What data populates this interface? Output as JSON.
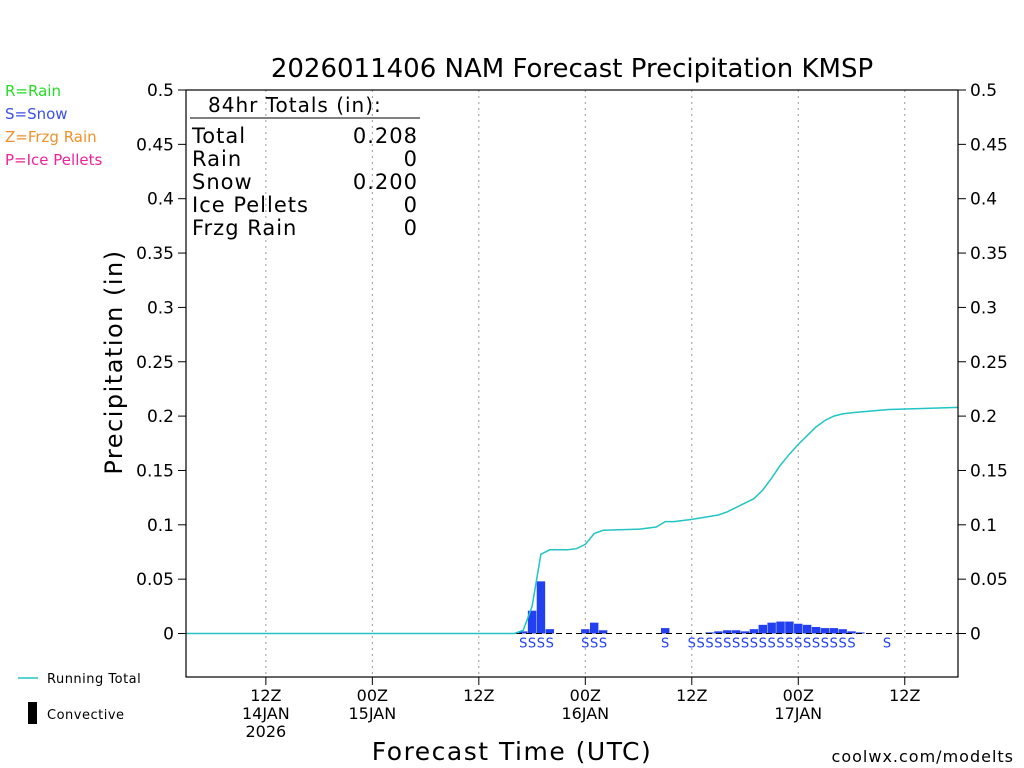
{
  "chart_data": {
    "type": "bar",
    "title": "2026011406 NAM Forecast Precipitation KMSP",
    "xlabel": "Forecast Time (UTC)",
    "ylabel": "Precipitation (in)",
    "ylim": [
      -0.04,
      0.5
    ],
    "xlim_hours": [
      -3,
      84
    ],
    "yticks": [
      {
        "v": 0.5,
        "label": "0.5"
      },
      {
        "v": 0.45,
        "label": "0.45"
      },
      {
        "v": 0.4,
        "label": "0.4"
      },
      {
        "v": 0.35,
        "label": "0.35"
      },
      {
        "v": 0.3,
        "label": "0.3"
      },
      {
        "v": 0.25,
        "label": "0.25"
      },
      {
        "v": 0.2,
        "label": "0.2"
      },
      {
        "v": 0.15,
        "label": "0.15"
      },
      {
        "v": 0.1,
        "label": "0.1"
      },
      {
        "v": 0.05,
        "label": "0.05"
      },
      {
        "v": 0,
        "label": "0"
      }
    ],
    "xticks": [
      {
        "h": 6,
        "lines": [
          "12Z",
          "14JAN",
          "2026"
        ]
      },
      {
        "h": 18,
        "lines": [
          "00Z",
          "15JAN"
        ]
      },
      {
        "h": 30,
        "lines": [
          "12Z"
        ]
      },
      {
        "h": 42,
        "lines": [
          "00Z",
          "16JAN"
        ]
      },
      {
        "h": 54,
        "lines": [
          "12Z"
        ]
      },
      {
        "h": 66,
        "lines": [
          "00Z",
          "17JAN"
        ]
      },
      {
        "h": 78,
        "lines": [
          "12Z"
        ]
      }
    ],
    "legend": [
      {
        "label": "R=Rain",
        "color": "#22dd22"
      },
      {
        "label": "S=Snow",
        "color": "#3b50e6"
      },
      {
        "label": "Z=Frzg Rain",
        "color": "#f0902a"
      },
      {
        "label": "P=Ice Pellets",
        "color": "#ee2299"
      }
    ],
    "series_legend": [
      {
        "label": "Running Total",
        "color": "#22c4c4",
        "kind": "line"
      },
      {
        "label": "Convective",
        "color": "#000000",
        "kind": "bar"
      }
    ],
    "totals": {
      "heading": "84hr Totals (in):",
      "rows": [
        {
          "label": "Total",
          "value": "0.208"
        },
        {
          "label": "Rain",
          "value": "0"
        },
        {
          "label": "Snow",
          "value": "0.200"
        },
        {
          "label": "Ice Pellets",
          "value": "0"
        },
        {
          "label": "Frzg Rain",
          "value": "0"
        }
      ]
    },
    "bars": [
      {
        "h": 35,
        "v": 0.002
      },
      {
        "h": 36,
        "v": 0.021
      },
      {
        "h": 37,
        "v": 0.048
      },
      {
        "h": 38,
        "v": 0.004
      },
      {
        "h": 42,
        "v": 0.004
      },
      {
        "h": 43,
        "v": 0.01
      },
      {
        "h": 44,
        "v": 0.003
      },
      {
        "h": 51,
        "v": 0.005
      },
      {
        "h": 56,
        "v": 0.001
      },
      {
        "h": 57,
        "v": 0.002
      },
      {
        "h": 58,
        "v": 0.003
      },
      {
        "h": 59,
        "v": 0.003
      },
      {
        "h": 60,
        "v": 0.002
      },
      {
        "h": 61,
        "v": 0.004
      },
      {
        "h": 62,
        "v": 0.008
      },
      {
        "h": 63,
        "v": 0.01
      },
      {
        "h": 64,
        "v": 0.011
      },
      {
        "h": 65,
        "v": 0.011
      },
      {
        "h": 66,
        "v": 0.009
      },
      {
        "h": 67,
        "v": 0.008
      },
      {
        "h": 68,
        "v": 0.006
      },
      {
        "h": 69,
        "v": 0.005
      },
      {
        "h": 70,
        "v": 0.005
      },
      {
        "h": 71,
        "v": 0.004
      },
      {
        "h": 72,
        "v": 0.002
      },
      {
        "h": 73,
        "v": 0.001
      }
    ],
    "running_total": [
      [
        -3,
        0
      ],
      [
        34,
        0
      ],
      [
        35,
        0.003
      ],
      [
        36,
        0.025
      ],
      [
        37,
        0.073
      ],
      [
        38,
        0.077
      ],
      [
        40,
        0.077
      ],
      [
        41,
        0.078
      ],
      [
        42,
        0.082
      ],
      [
        43,
        0.092
      ],
      [
        44,
        0.095
      ],
      [
        48,
        0.096
      ],
      [
        50,
        0.098
      ],
      [
        51,
        0.103
      ],
      [
        52,
        0.103
      ],
      [
        54,
        0.105
      ],
      [
        57,
        0.109
      ],
      [
        58,
        0.112
      ],
      [
        59,
        0.116
      ],
      [
        60,
        0.12
      ],
      [
        61,
        0.124
      ],
      [
        62,
        0.132
      ],
      [
        63,
        0.143
      ],
      [
        64,
        0.155
      ],
      [
        65,
        0.165
      ],
      [
        66,
        0.174
      ],
      [
        67,
        0.182
      ],
      [
        68,
        0.19
      ],
      [
        69,
        0.196
      ],
      [
        70,
        0.2
      ],
      [
        71,
        0.202
      ],
      [
        72,
        0.203
      ],
      [
        76,
        0.206
      ],
      [
        80,
        0.207
      ],
      [
        84,
        0.208
      ]
    ],
    "ptype_markers": [
      {
        "h": 35,
        "type": "S"
      },
      {
        "h": 36,
        "type": "S"
      },
      {
        "h": 37,
        "type": "S"
      },
      {
        "h": 38,
        "type": "S"
      },
      {
        "h": 42,
        "type": "S"
      },
      {
        "h": 43,
        "type": "S"
      },
      {
        "h": 44,
        "type": "S"
      },
      {
        "h": 51,
        "type": "S"
      },
      {
        "h": 54,
        "type": "S"
      },
      {
        "h": 55,
        "type": "S"
      },
      {
        "h": 56,
        "type": "S"
      },
      {
        "h": 57,
        "type": "S"
      },
      {
        "h": 58,
        "type": "S"
      },
      {
        "h": 59,
        "type": "S"
      },
      {
        "h": 60,
        "type": "S"
      },
      {
        "h": 61,
        "type": "S"
      },
      {
        "h": 62,
        "type": "S"
      },
      {
        "h": 63,
        "type": "S"
      },
      {
        "h": 64,
        "type": "S"
      },
      {
        "h": 65,
        "type": "S"
      },
      {
        "h": 66,
        "type": "S"
      },
      {
        "h": 67,
        "type": "S"
      },
      {
        "h": 68,
        "type": "S"
      },
      {
        "h": 69,
        "type": "S"
      },
      {
        "h": 70,
        "type": "S"
      },
      {
        "h": 71,
        "type": "S"
      },
      {
        "h": 72,
        "type": "S"
      },
      {
        "h": 76,
        "type": "S"
      }
    ],
    "colors": {
      "snow": "#2240f0",
      "running_total": "#22c4c4",
      "grid": "#999999",
      "credit": "#cc2222"
    },
    "credit": "coolwx.com/modelts"
  }
}
